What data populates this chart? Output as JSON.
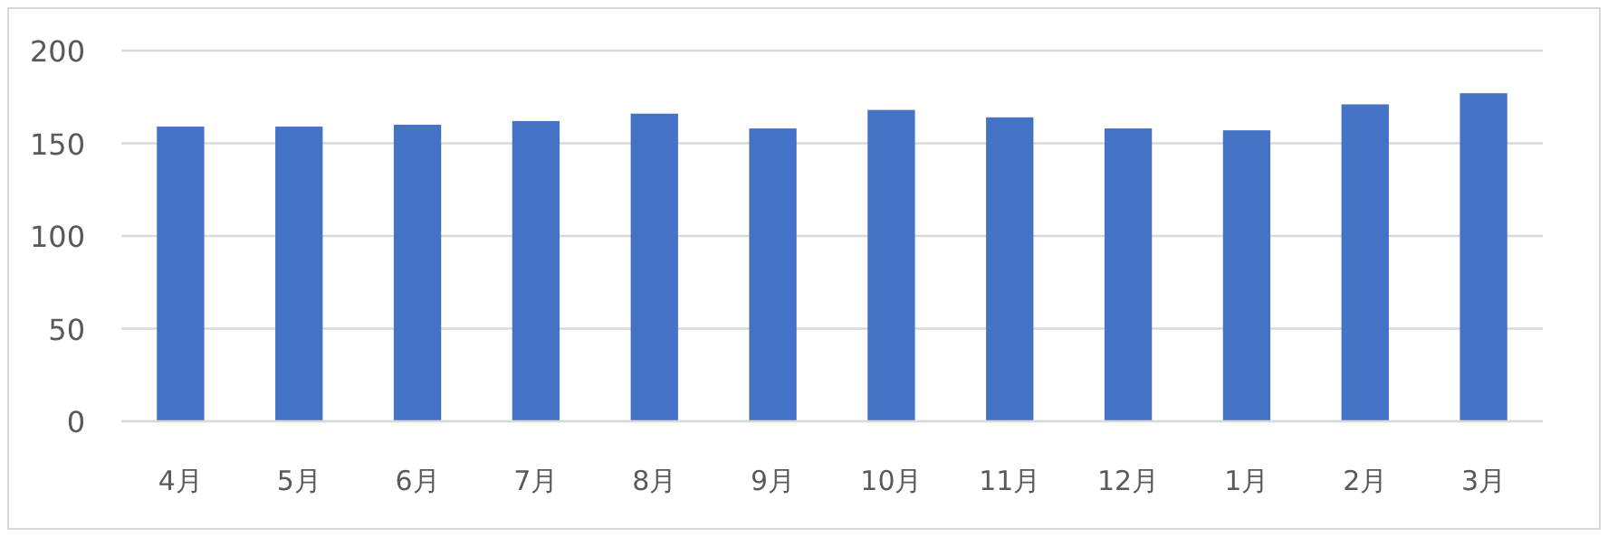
{
  "chart_data": {
    "type": "bar",
    "categories": [
      "4月",
      "5月",
      "6月",
      "7月",
      "8月",
      "9月",
      "10月",
      "11月",
      "12月",
      "1月",
      "2月",
      "3月"
    ],
    "values": [
      159,
      159,
      160,
      162,
      166,
      158,
      168,
      164,
      158,
      157,
      171,
      177
    ],
    "color": "#4472c4",
    "ylim": [
      0,
      200
    ],
    "yticks": [
      0,
      50,
      100,
      150,
      200
    ],
    "grid": "y"
  }
}
